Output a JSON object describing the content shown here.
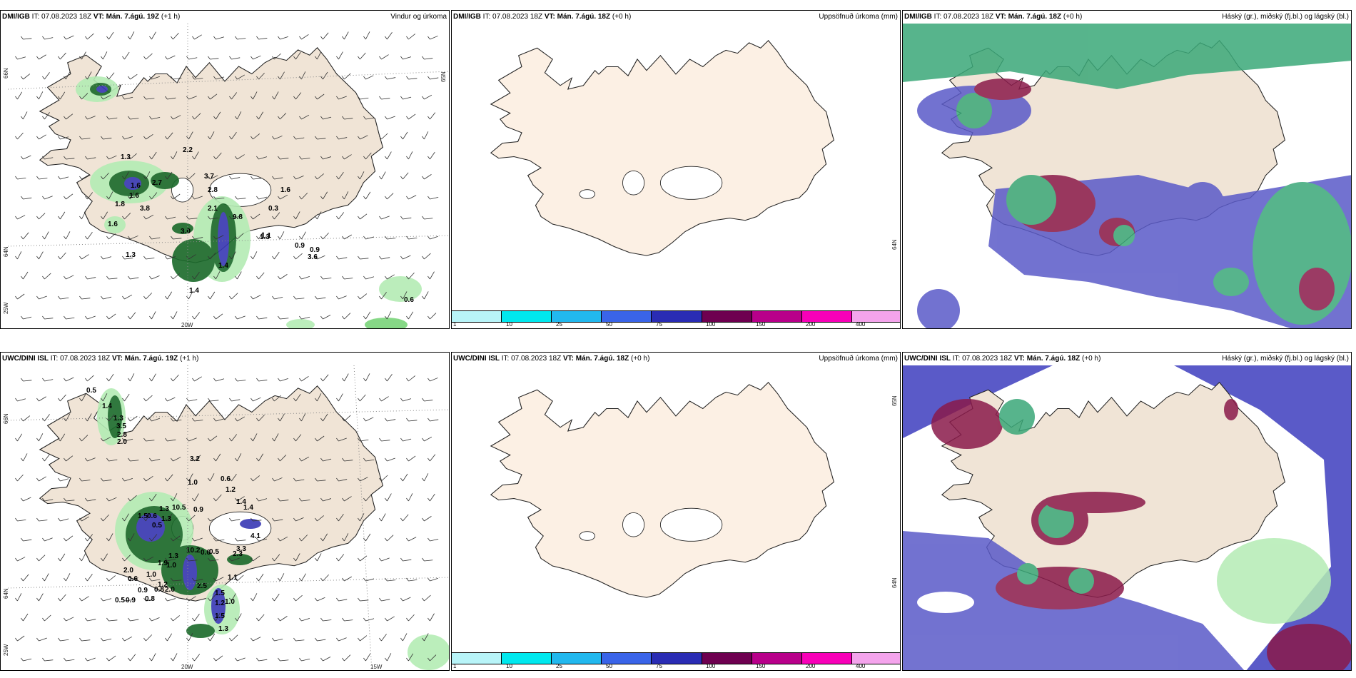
{
  "rows": [
    {
      "panels": [
        {
          "model": "DMI/IGB",
          "it_label": "IT: 07.08.2023 18Z",
          "vt_label": "VT: Mán. 7.ágú. 19Z",
          "lead": "(+1 h)",
          "field": "Vindur og úrkoma",
          "lat_labels": [
            "66N",
            "65N",
            "64N"
          ],
          "lon_labels": [
            "25W",
            "20W"
          ],
          "values": [
            "2.2",
            "1.3",
            "2.7",
            "1.6",
            "2.8",
            "3.7",
            "1.6",
            "1.6",
            "0.9",
            "1.8",
            "1.3",
            "1.6",
            "3.8",
            "9.8",
            "3.0",
            "2.1",
            "1.1",
            "0.9",
            "3.6",
            "1.3",
            "1.4",
            "1.4",
            "0.6",
            "0.3"
          ]
        },
        {
          "model": "DMI/IGB",
          "it_label": "IT: 07.08.2023 18Z",
          "vt_label": "VT: Mán. 7.ágú. 18Z",
          "lead": "(+0 h)",
          "field": "Uppsöfnuð úrkoma (mm)",
          "lat_labels": [
            "65N",
            "64N"
          ]
        },
        {
          "model": "DMI/IGB",
          "it_label": "IT: 07.08.2023 18Z",
          "vt_label": "VT: Mán. 7.ágú. 18Z",
          "lead": "(+0 h)",
          "field": "Háský (gr.), miðský (fj.bl.) og lágský (bl.)"
        }
      ]
    },
    {
      "panels": [
        {
          "model": "UWC/DINI ISL",
          "it_label": "IT: 07.08.2023 18Z",
          "vt_label": "VT: Mán. 7.ágú. 19Z",
          "lead": "(+1 h)",
          "field": "",
          "lat_labels": [
            "66N",
            "65N",
            "64N"
          ],
          "lon_labels": [
            "25W",
            "20W",
            "15W"
          ],
          "values": [
            "0.5",
            "1.4",
            "1.3",
            "3.5",
            "2.8",
            "2.0",
            "3.2",
            "0.6",
            "1.0",
            "1.2",
            "1.4",
            "1.3",
            "10.5",
            "0.9",
            "0.6",
            "1.3",
            "0.5",
            "0.6",
            "2.0",
            "10.2",
            "0.5",
            "1.3",
            "1.9",
            "1.0",
            "0.6",
            "1.0",
            "0.9",
            "1.2",
            "0.8",
            "2.5",
            "1.5",
            "2.0",
            "0.9",
            "0.5",
            "1.2",
            "1.0",
            "1.5",
            "1.3",
            "2.3",
            "1.1",
            "1.4",
            "1.5",
            "0.8",
            "4.1",
            "3.3"
          ]
        },
        {
          "model": "UWC/DINI ISL",
          "it_label": "IT: 07.08.2023 18Z",
          "vt_label": "VT: Mán. 7.ágú. 18Z",
          "lead": "(+0 h)",
          "field": "Uppsöfnuð úrkoma (mm)",
          "lat_labels": [
            "65N",
            "64N"
          ]
        },
        {
          "model": "UWC/DINI ISL",
          "it_label": "IT: 07.08.2023 18Z",
          "vt_label": "VT: Mán. 7.ágú. 18Z",
          "lead": "(+0 h)",
          "field": "Háský (gr.), miðský (fj.bl.) og lágský (bl.)"
        }
      ]
    }
  ],
  "colorbar": {
    "ticks": [
      "1",
      "10",
      "25",
      "50",
      "75",
      "100",
      "150",
      "200",
      "400"
    ],
    "colors": [
      "#b8f4f8",
      "#00e8ee",
      "#22b8ee",
      "#3a64e8",
      "#2a2cb4",
      "#6e0050",
      "#b8008a",
      "#f800b8",
      "#f4a4ec"
    ]
  },
  "colors": {
    "land": "#f0e4d6",
    "land_plain": "#fcf0e4",
    "green_dark": "#1a6a2a",
    "green_light": "#b4ecb4",
    "blue_precip": "#3838b4",
    "cloud_low": "#5a5ac8",
    "cloud_mid": "#8a1a4a",
    "cloud_high": "#3aa878"
  }
}
